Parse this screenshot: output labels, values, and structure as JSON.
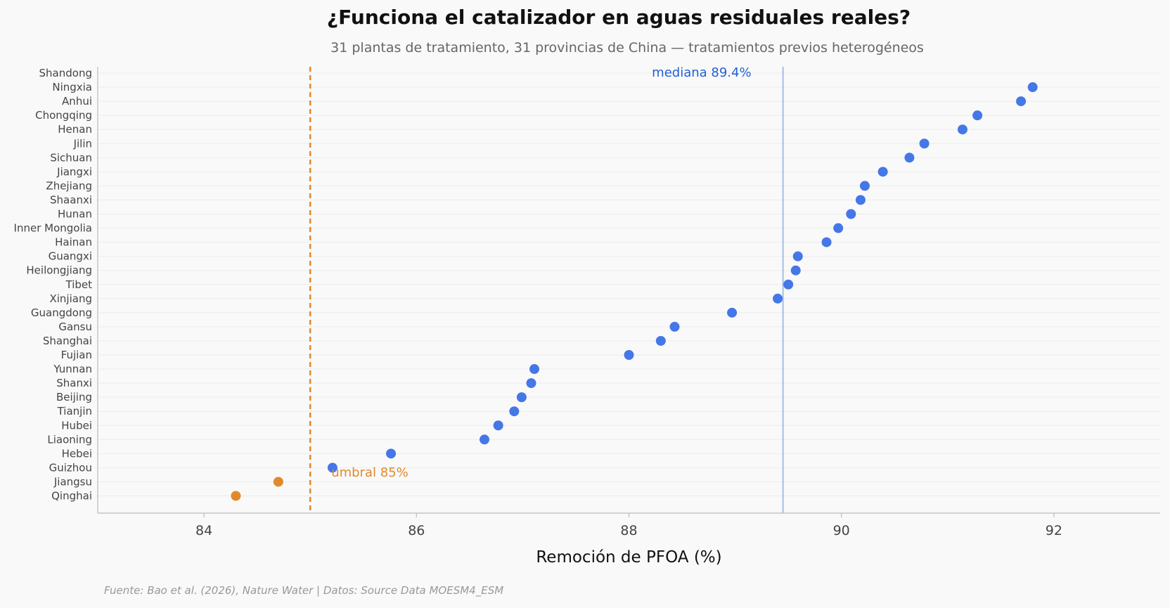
{
  "chart_data": {
    "type": "scatter",
    "title": "¿Funciona el catalizador en aguas residuales reales?",
    "subtitle": "31 plantas de tratamiento, 31 provincias de China — tratamientos previos heterogéneos",
    "xlabel": "Remoción de PFOA (%)",
    "ylabel": "",
    "xlim": [
      83,
      93
    ],
    "xticks": [
      84,
      86,
      88,
      90,
      92
    ],
    "grid": "horizontal",
    "source": "Fuente: Bao et al. (2026), Nature Water | Datos: Source Data MOESM4_ESM",
    "threshold": {
      "value": 85,
      "label": "umbral 85%",
      "color": "#e08a2c"
    },
    "median": {
      "value": 89.45,
      "label": "mediana 89.4%",
      "color": "#2060d8"
    },
    "colors": {
      "above": "#4477e8",
      "below": "#e08a2c",
      "median_line": "#9bb8e6",
      "axis": "#bbbbbb",
      "grid": "#ececec"
    },
    "categories": [
      "Shandong",
      "Ningxia",
      "Anhui",
      "Chongqing",
      "Henan",
      "Jilin",
      "Sichuan",
      "Jiangxi",
      "Zhejiang",
      "Shaanxi",
      "Hunan",
      "Inner Mongolia",
      "Hainan",
      "Guangxi",
      "Heilongjiang",
      "Tibet",
      "Xinjiang",
      "Guangdong",
      "Gansu",
      "Shanghai",
      "Fujian",
      "Yunnan",
      "Shanxi",
      "Beijing",
      "Tianjin",
      "Hubei",
      "Liaoning",
      "Hebei",
      "Guizhou",
      "Jiangsu",
      "Qinghai"
    ],
    "values": [
      null,
      91.8,
      91.69,
      91.28,
      91.14,
      90.78,
      90.64,
      90.39,
      90.22,
      90.18,
      90.09,
      89.97,
      89.86,
      89.59,
      89.57,
      89.5,
      89.4,
      88.97,
      88.43,
      88.3,
      88.0,
      87.11,
      87.08,
      86.99,
      86.92,
      86.77,
      86.64,
      85.76,
      85.21,
      84.7,
      84.3
    ]
  }
}
